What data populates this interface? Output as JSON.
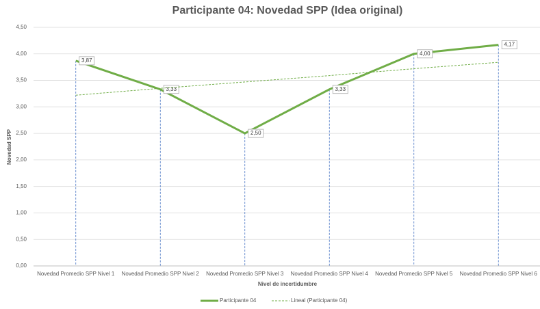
{
  "chart_data": {
    "type": "line",
    "title": "Participante 04: Novedad SPP (Idea original)",
    "x_label": "Nivel de incertidumbre",
    "y_label": "Novedad SPP",
    "categories": [
      "Novedad Promedio SPP Nivel 1",
      "Novedad Promedio SPP Nivel 2",
      "Novedad Promedio SPP Nivel 3",
      "Novedad Promedio SPP Nivel 4",
      "Novedad Promedio SPP Nivel 5",
      "Novedad Promedio SPP Nivel 6"
    ],
    "series": [
      {
        "name": "Participante 04",
        "color": "#70ad47",
        "values": [
          3.87,
          3.33,
          2.5,
          3.33,
          4.0,
          4.17
        ],
        "value_labels": [
          "3,87",
          "3,33",
          "2,50",
          "3,33",
          "4,00",
          "4,17"
        ]
      },
      {
        "name": "Lineal (Participante 04)",
        "color": "#70ad47",
        "dashed": true,
        "values": [
          3.22,
          3.35,
          3.47,
          3.59,
          3.72,
          3.84
        ]
      }
    ],
    "ylim": [
      0,
      4.5
    ],
    "yticks": [
      {
        "value": 0,
        "label": "0,00"
      },
      {
        "value": 0.5,
        "label": "0,50"
      },
      {
        "value": 1,
        "label": "1,00"
      },
      {
        "value": 1.5,
        "label": "1,50"
      },
      {
        "value": 2,
        "label": "2,00"
      },
      {
        "value": 2.5,
        "label": "2,50"
      },
      {
        "value": 3,
        "label": "3,00"
      },
      {
        "value": 3.5,
        "label": "3,50"
      },
      {
        "value": 4,
        "label": "4,00"
      },
      {
        "value": 4.5,
        "label": "4,50"
      }
    ],
    "grid": true,
    "drop_lines": true,
    "legend": "bottom"
  }
}
